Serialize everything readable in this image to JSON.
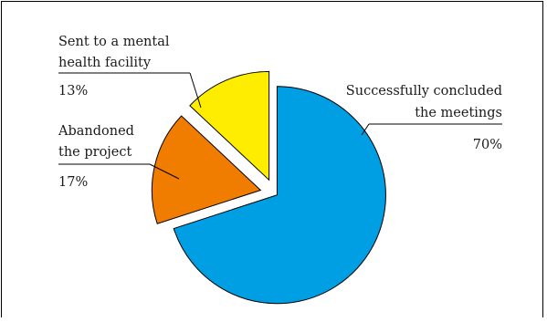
{
  "chart_data": {
    "type": "pie",
    "slices": [
      {
        "label_lines": [
          "Successfully concluded",
          "the meetings"
        ],
        "value": 70,
        "value_label": "70%",
        "color": "#009fe3"
      },
      {
        "label_lines": [
          "Abandoned",
          "the project"
        ],
        "value": 17,
        "value_label": "17%",
        "color": "#f07d00"
      },
      {
        "label_lines": [
          "Sent to a mental",
          "health facility"
        ],
        "value": 13,
        "value_label": "13%",
        "color": "#ffed00"
      }
    ],
    "exploded": true,
    "slice_outline_color": "#000000",
    "legend": "none (labels beside slices)",
    "grid": false
  }
}
